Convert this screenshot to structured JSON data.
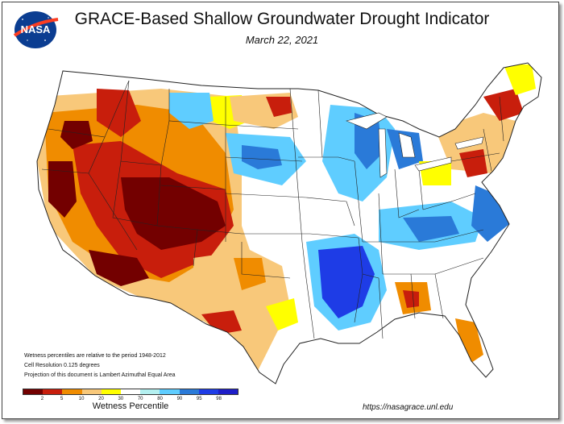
{
  "header": {
    "title": "GRACE-Based Shallow Groundwater Drought Indicator",
    "date": "March 22, 2021",
    "logo_text": "NASA"
  },
  "notes": [
    "Wetness percentiles are relative to the period 1948-2012",
    "Cell Resolution 0.125 degrees",
    "Projection of this document is Lambert Azimuthal Equal Area"
  ],
  "legend": {
    "label": "Wetness Percentile",
    "ticks": [
      "2",
      "5",
      "10",
      "20",
      "30",
      "70",
      "80",
      "90",
      "95",
      "98"
    ],
    "colors": [
      "#730000",
      "#c81e0c",
      "#f08c00",
      "#f8c87a",
      "#ffff00",
      "#ffffff",
      "#b4f0f0",
      "#5fcdff",
      "#2a7ad8",
      "#1e3ce6",
      "#1e1ec8"
    ]
  },
  "url": "https://nasagrace.unl.edu",
  "colors": {
    "very_dry": "#730000",
    "dry": "#c81e0c",
    "moderate_dry": "#f08c00",
    "light_dry": "#f8c87a",
    "abnormal_dry": "#ffff00",
    "normal": "#ffffff",
    "light_wet": "#b4f0f0",
    "wet": "#5fcdff",
    "very_wet": "#2a7ad8",
    "extreme_wet": "#1e3ce6"
  }
}
